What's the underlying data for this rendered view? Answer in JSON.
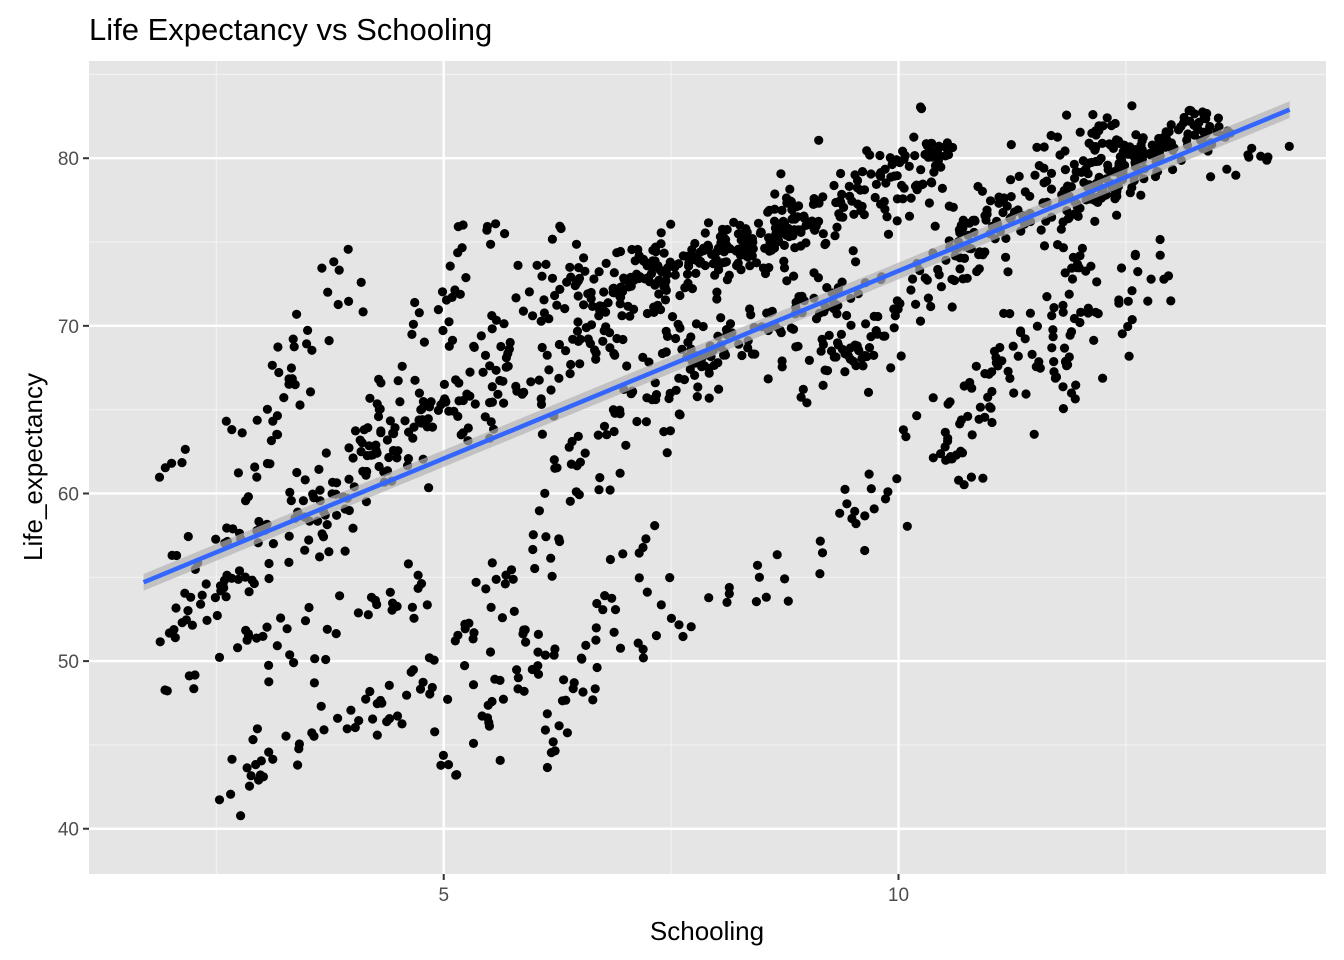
{
  "chart_data": {
    "type": "scatter",
    "title": "Life Expectancy vs Schooling",
    "xlabel": "Schooling",
    "ylabel": "Life_expectancy",
    "xlim": [
      1.1,
      14.7
    ],
    "ylim": [
      37.3,
      85.8
    ],
    "x_major_ticks": [
      5,
      10
    ],
    "x_minor_grid": [
      2.5,
      7.5,
      12.5
    ],
    "y_major_ticks": [
      40,
      50,
      60,
      70,
      80
    ],
    "y_minor_grid": [
      45,
      55,
      65,
      75,
      85
    ],
    "grid": true,
    "legend": "none",
    "background": "#e5e5e5",
    "point_color": "#000000",
    "trend_color": "#3366ff",
    "band_color": "#b3b3b3",
    "trend_line": {
      "method": "linear",
      "x": [
        1.7,
        14.3
      ],
      "y": [
        54.7,
        82.9
      ],
      "se_halfwidth": 0.5
    },
    "series": [
      {
        "clusters": [
          {
            "x0": 1.7,
            "y0": 50.5,
            "x1": 3.5,
            "y1": 58.0,
            "n": 40,
            "s": 0.7
          },
          {
            "x0": 1.8,
            "y0": 61.0,
            "x1": 2.7,
            "y1": 64.2,
            "n": 8,
            "s": 0.2
          },
          {
            "x0": 1.9,
            "y0": 48.0,
            "x1": 3.2,
            "y1": 52.5,
            "n": 14,
            "s": 0.4
          },
          {
            "x0": 2.0,
            "y0": 56.0,
            "x1": 5.2,
            "y1": 64.5,
            "n": 60,
            "s": 1.0
          },
          {
            "x0": 2.5,
            "y0": 40.0,
            "x1": 3.2,
            "y1": 44.5,
            "n": 8,
            "s": 0.2
          },
          {
            "x0": 2.8,
            "y0": 44.0,
            "x1": 4.5,
            "y1": 47.5,
            "n": 30,
            "s": 0.8
          },
          {
            "x0": 3.0,
            "y0": 49.5,
            "x1": 4.8,
            "y1": 54.5,
            "n": 30,
            "s": 0.9
          },
          {
            "x0": 2.8,
            "y0": 60.0,
            "x1": 4.0,
            "y1": 74.0,
            "n": 40,
            "s": 1.2
          },
          {
            "x0": 3.5,
            "y0": 58.0,
            "x1": 6.5,
            "y1": 74.0,
            "n": 110,
            "s": 1.3
          },
          {
            "x0": 4.0,
            "y0": 62.0,
            "x1": 5.6,
            "y1": 76.8,
            "n": 40,
            "s": 1.0
          },
          {
            "x0": 4.5,
            "y0": 46.0,
            "x1": 6.5,
            "y1": 60.0,
            "n": 50,
            "s": 1.4
          },
          {
            "x0": 5.0,
            "y0": 43.0,
            "x1": 6.0,
            "y1": 51.0,
            "n": 30,
            "s": 1.0
          },
          {
            "x0": 5.2,
            "y0": 64.0,
            "x1": 7.5,
            "y1": 73.0,
            "n": 80,
            "s": 1.2
          },
          {
            "x0": 6.0,
            "y0": 44.0,
            "x1": 7.3,
            "y1": 58.0,
            "n": 40,
            "s": 1.3
          },
          {
            "x0": 6.0,
            "y0": 60.0,
            "x1": 8.0,
            "y1": 68.0,
            "n": 55,
            "s": 1.3
          },
          {
            "x0": 6.5,
            "y0": 72.0,
            "x1": 9.0,
            "y1": 76.0,
            "n": 150,
            "s": 1.0
          },
          {
            "x0": 7.2,
            "y0": 50.5,
            "x1": 8.6,
            "y1": 55.5,
            "n": 15,
            "s": 0.6
          },
          {
            "x0": 7.0,
            "y0": 66.0,
            "x1": 9.5,
            "y1": 72.5,
            "n": 100,
            "s": 1.3
          },
          {
            "x0": 8.5,
            "y0": 53.5,
            "x1": 9.8,
            "y1": 60.5,
            "n": 14,
            "s": 0.7
          },
          {
            "x0": 8.0,
            "y0": 74.0,
            "x1": 10.5,
            "y1": 80.0,
            "n": 180,
            "s": 1.2
          },
          {
            "x0": 9.0,
            "y0": 66.0,
            "x1": 10.8,
            "y1": 75.0,
            "n": 80,
            "s": 1.4
          },
          {
            "x0": 9.5,
            "y0": 56.5,
            "x1": 10.6,
            "y1": 66.0,
            "n": 14,
            "s": 0.8
          },
          {
            "x0": 10.5,
            "y0": 62.0,
            "x1": 12.0,
            "y1": 74.0,
            "n": 80,
            "s": 1.6
          },
          {
            "x0": 10.5,
            "y0": 74.0,
            "x1": 12.5,
            "y1": 82.0,
            "n": 130,
            "s": 1.3
          },
          {
            "x0": 11.5,
            "y0": 66.0,
            "x1": 13.0,
            "y1": 74.5,
            "n": 50,
            "s": 1.3
          },
          {
            "x0": 11.8,
            "y0": 77.0,
            "x1": 13.5,
            "y1": 82.5,
            "n": 180,
            "s": 0.8
          },
          {
            "x0": 13.5,
            "y0": 79.0,
            "x1": 14.3,
            "y1": 81.0,
            "n": 10,
            "s": 0.3
          }
        ]
      }
    ]
  }
}
